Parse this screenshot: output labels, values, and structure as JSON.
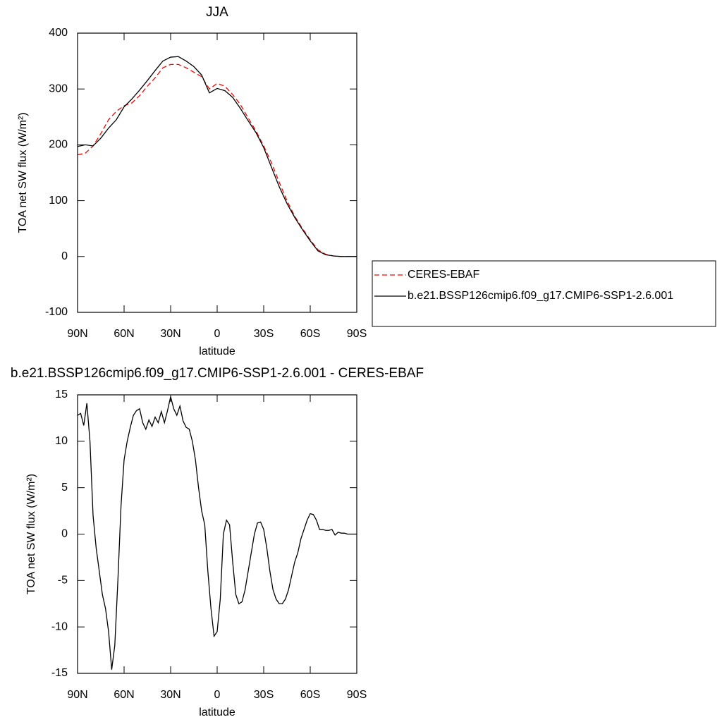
{
  "chart_data": [
    {
      "type": "line",
      "title": "JJA",
      "xlabel": "latitude",
      "ylabel": "TOA net SW flux (W/m²)",
      "xlim": [
        90,
        -90
      ],
      "ylim": [
        -100,
        400
      ],
      "xticks": [
        {
          "value": 90,
          "label": "90N"
        },
        {
          "value": 60,
          "label": "60N"
        },
        {
          "value": 30,
          "label": "30N"
        },
        0,
        {
          "value": -30,
          "label": "30S"
        },
        {
          "value": -60,
          "label": "60S"
        },
        {
          "value": -90,
          "label": "90S"
        }
      ],
      "yticks": [
        -100,
        0,
        100,
        200,
        300,
        400
      ],
      "legend": "right",
      "x": [
        90,
        85,
        80,
        75,
        70,
        65,
        60,
        55,
        50,
        45,
        40,
        35,
        30,
        25,
        20,
        15,
        10,
        5,
        0,
        -5,
        -10,
        -15,
        -20,
        -25,
        -30,
        -35,
        -40,
        -45,
        -50,
        -55,
        -60,
        -65,
        -70,
        -75,
        -80,
        -85,
        -90
      ],
      "series": [
        {
          "name": "CERES-EBAF",
          "color": "#ff0000",
          "style": "dashed",
          "values": [
            182,
            185,
            198,
            220,
            245,
            260,
            270,
            275,
            288,
            305,
            320,
            338,
            344,
            344,
            338,
            330,
            322,
            300,
            310,
            305,
            290,
            272,
            248,
            225,
            198,
            168,
            133,
            100,
            72,
            50,
            30,
            12,
            4,
            1,
            0,
            0,
            0
          ]
        },
        {
          "name": "b.e21.BSSP126cmip6.f09_g17.CMIP6-SSP1-2.6.001",
          "color": "#000000",
          "style": "solid",
          "values": [
            197,
            200,
            198,
            212,
            230,
            245,
            268,
            282,
            298,
            315,
            333,
            350,
            357,
            358,
            350,
            340,
            325,
            293,
            301,
            297,
            285,
            265,
            243,
            222,
            195,
            160,
            125,
            95,
            70,
            48,
            28,
            10,
            3,
            1,
            0,
            0,
            0
          ]
        }
      ]
    },
    {
      "type": "line",
      "title": "b.e21.BSSP126cmip6.f09_g17.CMIP6-SSP1-2.6.001 - CERES-EBAF",
      "xlabel": "latitude",
      "ylabel": "TOA net SW flux (W/m²)",
      "xlim": [
        90,
        -90
      ],
      "ylim": [
        -15,
        15
      ],
      "xticks": [
        {
          "value": 90,
          "label": "90N"
        },
        {
          "value": 60,
          "label": "60N"
        },
        {
          "value": 30,
          "label": "30N"
        },
        0,
        {
          "value": -30,
          "label": "30S"
        },
        {
          "value": -60,
          "label": "60S"
        },
        {
          "value": -90,
          "label": "90S"
        }
      ],
      "yticks": [
        -15,
        -10,
        -5,
        0,
        5,
        10,
        15
      ],
      "x": [
        90,
        88,
        86,
        84,
        82,
        80,
        78,
        76,
        74,
        72,
        70,
        68,
        66,
        64,
        62,
        60,
        58,
        56,
        54,
        52,
        50,
        48,
        46,
        44,
        42,
        40,
        38,
        36,
        34,
        32,
        30,
        28,
        26,
        24,
        22,
        20,
        18,
        16,
        14,
        12,
        10,
        8,
        6,
        4,
        2,
        0,
        -2,
        -4,
        -6,
        -8,
        -10,
        -12,
        -14,
        -16,
        -18,
        -20,
        -22,
        -24,
        -26,
        -28,
        -30,
        -32,
        -34,
        -36,
        -38,
        -40,
        -42,
        -44,
        -46,
        -48,
        -50,
        -52,
        -54,
        -56,
        -58,
        -60,
        -62,
        -64,
        -66,
        -68,
        -70,
        -72,
        -74,
        -76,
        -78,
        -80,
        -82,
        -84,
        -86,
        -88,
        -90
      ],
      "series": [
        {
          "color": "#000000",
          "style": "solid",
          "values": [
            12.8,
            13,
            11.7,
            14.1,
            10,
            2,
            -1.5,
            -4,
            -6.5,
            -8,
            -10.5,
            -14.6,
            -12,
            -5,
            3,
            8,
            10,
            11.5,
            12.8,
            13.3,
            13.5,
            12,
            11.3,
            12.3,
            11.6,
            12.6,
            12,
            13.2,
            12,
            13.3,
            14.8,
            13.5,
            12.8,
            13.8,
            12.2,
            11.5,
            11.3,
            10,
            8,
            5,
            2.5,
            1,
            -4,
            -8,
            -11,
            -10.5,
            -7,
            0,
            1.5,
            1,
            -3,
            -6.5,
            -7.5,
            -7.3,
            -6,
            -4,
            -2,
            0,
            1.2,
            1.3,
            0.5,
            -1.5,
            -4,
            -6,
            -7,
            -7.5,
            -7.5,
            -7,
            -6,
            -4.5,
            -3,
            -2,
            -0.5,
            0.5,
            1.5,
            2.2,
            2.1,
            1.5,
            0.5,
            0.5,
            0.4,
            0.4,
            0.5,
            -0.1,
            0.2,
            0.1,
            0.1,
            0,
            0,
            0,
            0
          ]
        }
      ]
    }
  ]
}
